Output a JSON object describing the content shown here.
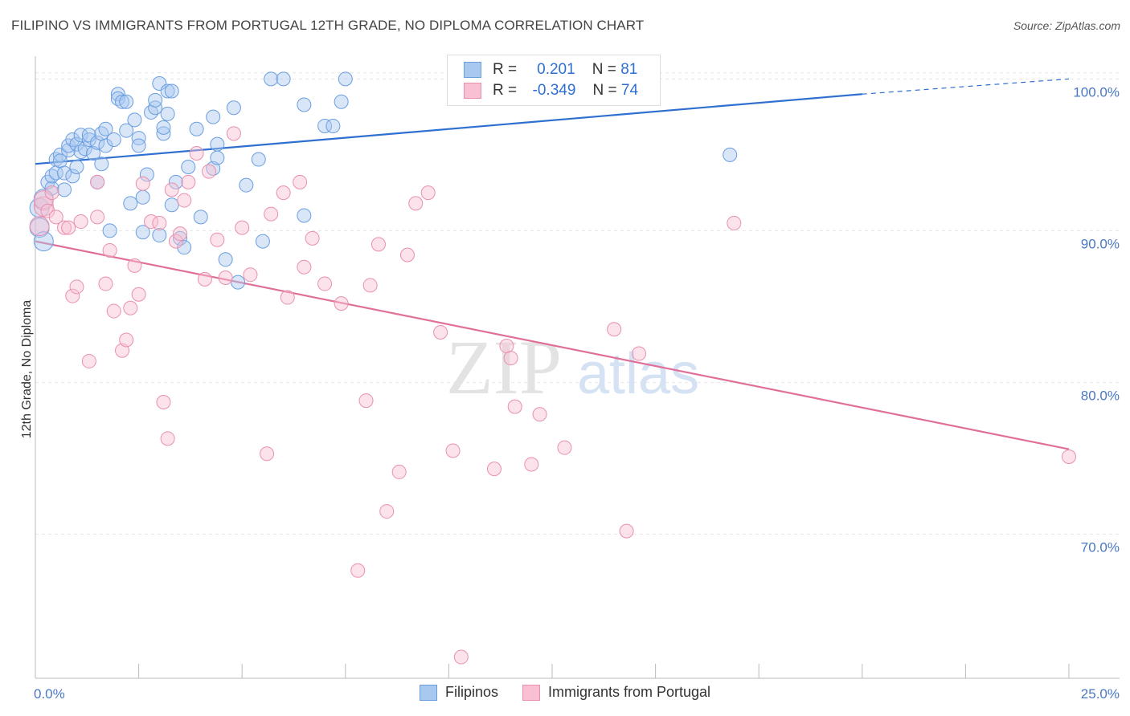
{
  "title": "FILIPINO VS IMMIGRANTS FROM PORTUGAL 12TH GRADE, NO DIPLOMA CORRELATION CHART",
  "source": "Source: ZipAtlas.com",
  "watermark": {
    "zip": "ZIP",
    "atlas": "atlas"
  },
  "legend": {
    "r_label": "R =",
    "n_label": "N =",
    "rows": [
      {
        "r": "0.201",
        "n": "81",
        "color": "#a8c8f0",
        "border": "#6b9ee0"
      },
      {
        "r": "-0.349",
        "n": "74",
        "color": "#f8c0d2",
        "border": "#e890ae"
      }
    ]
  },
  "chart_data": {
    "type": "scatter",
    "title": "FILIPINO VS IMMIGRANTS FROM PORTUGAL 12TH GRADE, NO DIPLOMA CORRELATION CHART",
    "xlabel": "",
    "ylabel": "12th Grade, No Diploma",
    "xlim": [
      0,
      25
    ],
    "ylim": [
      60.5,
      101.5
    ],
    "x_tick_labels": [
      "0.0%",
      "25.0%"
    ],
    "y_ticks": [
      70,
      80,
      90,
      100
    ],
    "y_tick_labels": [
      "70.0%",
      "80.0%",
      "90.0%",
      "100.0%"
    ],
    "grid": true,
    "legend_position": "top-center",
    "series": [
      {
        "name": "Filipinos",
        "color": "#6b9ee0",
        "fill": "#a8c8f0",
        "trend": {
          "x": [
            0,
            20,
            25
          ],
          "y": [
            94.4,
            99.0,
            100.0
          ]
        },
        "points": [
          [
            0.1,
            90.2
          ],
          [
            0.1,
            91.5
          ],
          [
            0.2,
            89.3
          ],
          [
            0.2,
            92.1
          ],
          [
            0.3,
            93.2
          ],
          [
            0.4,
            92.8
          ],
          [
            0.4,
            93.6
          ],
          [
            0.5,
            93.8
          ],
          [
            0.5,
            94.7
          ],
          [
            0.6,
            95.0
          ],
          [
            0.6,
            94.6
          ],
          [
            0.7,
            93.8
          ],
          [
            0.7,
            92.7
          ],
          [
            0.8,
            95.3
          ],
          [
            0.8,
            95.6
          ],
          [
            0.9,
            93.6
          ],
          [
            0.9,
            96.0
          ],
          [
            1.0,
            95.7
          ],
          [
            1.0,
            94.2
          ],
          [
            1.1,
            95.2
          ],
          [
            1.1,
            96.3
          ],
          [
            1.2,
            95.4
          ],
          [
            1.3,
            96.0
          ],
          [
            1.3,
            96.3
          ],
          [
            1.4,
            95.1
          ],
          [
            1.5,
            93.2
          ],
          [
            1.5,
            95.8
          ],
          [
            1.6,
            96.4
          ],
          [
            1.6,
            94.4
          ],
          [
            1.7,
            95.6
          ],
          [
            1.7,
            96.7
          ],
          [
            1.8,
            90.0
          ],
          [
            1.9,
            96.0
          ],
          [
            2.0,
            99.0
          ],
          [
            2.0,
            98.7
          ],
          [
            2.1,
            98.5
          ],
          [
            2.2,
            96.6
          ],
          [
            2.2,
            98.5
          ],
          [
            2.3,
            91.8
          ],
          [
            2.4,
            97.3
          ],
          [
            2.5,
            96.1
          ],
          [
            2.5,
            95.6
          ],
          [
            2.6,
            92.2
          ],
          [
            2.6,
            89.9
          ],
          [
            2.7,
            93.7
          ],
          [
            2.8,
            97.8
          ],
          [
            2.9,
            98.1
          ],
          [
            2.9,
            98.6
          ],
          [
            3.0,
            99.7
          ],
          [
            3.0,
            89.7
          ],
          [
            3.1,
            96.4
          ],
          [
            3.1,
            96.8
          ],
          [
            3.2,
            99.2
          ],
          [
            3.2,
            97.7
          ],
          [
            3.3,
            99.2
          ],
          [
            3.3,
            91.7
          ],
          [
            3.4,
            93.2
          ],
          [
            3.5,
            89.5
          ],
          [
            3.6,
            88.9
          ],
          [
            3.7,
            94.2
          ],
          [
            3.9,
            96.7
          ],
          [
            4.0,
            90.9
          ],
          [
            4.3,
            94.1
          ],
          [
            4.3,
            97.5
          ],
          [
            4.4,
            94.8
          ],
          [
            4.4,
            95.7
          ],
          [
            4.6,
            88.1
          ],
          [
            4.8,
            98.1
          ],
          [
            4.9,
            86.6
          ],
          [
            5.1,
            93.0
          ],
          [
            5.4,
            94.7
          ],
          [
            5.5,
            89.3
          ],
          [
            5.7,
            100.0
          ],
          [
            6.0,
            100.0
          ],
          [
            6.5,
            91.0
          ],
          [
            6.5,
            98.3
          ],
          [
            7.0,
            96.9
          ],
          [
            7.2,
            96.9
          ],
          [
            7.4,
            98.5
          ],
          [
            7.5,
            100.0
          ],
          [
            16.8,
            95.0
          ]
        ]
      },
      {
        "name": "Immigrants from Portugal",
        "color": "#e890ae",
        "fill": "#f8c0d2",
        "trend": {
          "x": [
            0,
            25
          ],
          "y": [
            89.3,
            75.6
          ]
        },
        "points": [
          [
            0.1,
            90.3
          ],
          [
            0.2,
            91.6
          ],
          [
            0.2,
            92.0
          ],
          [
            0.3,
            91.3
          ],
          [
            0.4,
            92.5
          ],
          [
            0.5,
            90.9
          ],
          [
            0.7,
            90.2
          ],
          [
            0.8,
            90.2
          ],
          [
            0.9,
            85.7
          ],
          [
            1.0,
            86.3
          ],
          [
            1.1,
            90.6
          ],
          [
            1.3,
            81.4
          ],
          [
            1.5,
            90.9
          ],
          [
            1.5,
            93.2
          ],
          [
            1.7,
            86.5
          ],
          [
            1.8,
            88.7
          ],
          [
            1.9,
            84.7
          ],
          [
            2.1,
            82.1
          ],
          [
            2.2,
            82.8
          ],
          [
            2.3,
            84.9
          ],
          [
            2.4,
            87.7
          ],
          [
            2.5,
            85.8
          ],
          [
            2.6,
            93.1
          ],
          [
            2.8,
            90.6
          ],
          [
            3.0,
            90.5
          ],
          [
            3.1,
            78.7
          ],
          [
            3.2,
            76.3
          ],
          [
            3.3,
            92.7
          ],
          [
            3.4,
            89.3
          ],
          [
            3.5,
            89.8
          ],
          [
            3.6,
            92.0
          ],
          [
            3.7,
            93.2
          ],
          [
            3.9,
            95.1
          ],
          [
            4.1,
            86.8
          ],
          [
            4.2,
            93.9
          ],
          [
            4.4,
            89.4
          ],
          [
            4.6,
            86.9
          ],
          [
            4.8,
            96.4
          ],
          [
            5.0,
            90.2
          ],
          [
            5.2,
            87.1
          ],
          [
            5.6,
            75.3
          ],
          [
            5.7,
            91.1
          ],
          [
            6.0,
            92.5
          ],
          [
            6.1,
            85.6
          ],
          [
            6.4,
            93.2
          ],
          [
            6.5,
            87.6
          ],
          [
            6.7,
            89.5
          ],
          [
            7.0,
            86.5
          ],
          [
            7.4,
            85.2
          ],
          [
            7.8,
            67.6
          ],
          [
            8.0,
            78.8
          ],
          [
            8.1,
            86.4
          ],
          [
            8.3,
            89.1
          ],
          [
            8.5,
            71.5
          ],
          [
            8.8,
            74.1
          ],
          [
            9.0,
            88.4
          ],
          [
            9.2,
            91.8
          ],
          [
            9.5,
            92.5
          ],
          [
            9.8,
            83.3
          ],
          [
            10.1,
            75.5
          ],
          [
            10.3,
            61.9
          ],
          [
            11.1,
            74.3
          ],
          [
            11.4,
            82.4
          ],
          [
            11.5,
            81.6
          ],
          [
            11.6,
            78.4
          ],
          [
            12.0,
            74.6
          ],
          [
            12.2,
            77.9
          ],
          [
            12.8,
            75.7
          ],
          [
            13.2,
            100.0
          ],
          [
            14.0,
            83.5
          ],
          [
            14.3,
            70.2
          ],
          [
            14.6,
            81.9
          ],
          [
            16.9,
            90.5
          ],
          [
            25.0,
            75.1
          ]
        ]
      }
    ]
  }
}
